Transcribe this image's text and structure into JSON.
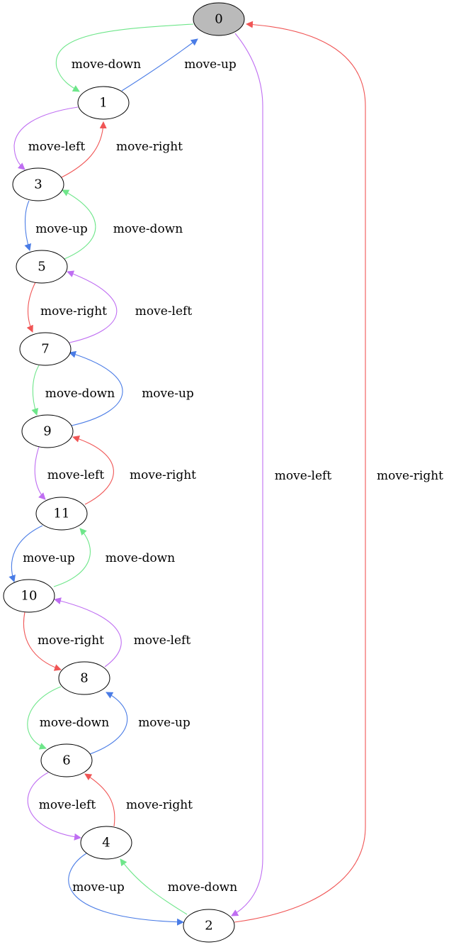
{
  "colors": {
    "move-up": "#4a7ce6",
    "move-down": "#6ee68a",
    "move-left": "#bf6ef2",
    "move-right": "#f05555",
    "initial_fill": "#bababa",
    "node_fill": "#ffffff"
  },
  "nodes": [
    {
      "id": "0",
      "label": "0",
      "initial": true
    },
    {
      "id": "1",
      "label": "1"
    },
    {
      "id": "2",
      "label": "2"
    },
    {
      "id": "3",
      "label": "3"
    },
    {
      "id": "4",
      "label": "4"
    },
    {
      "id": "5",
      "label": "5"
    },
    {
      "id": "6",
      "label": "6"
    },
    {
      "id": "7",
      "label": "7"
    },
    {
      "id": "8",
      "label": "8"
    },
    {
      "id": "9",
      "label": "9"
    },
    {
      "id": "10",
      "label": "10"
    },
    {
      "id": "11",
      "label": "11"
    }
  ],
  "edges": [
    {
      "from": "0",
      "to": "1",
      "label": "move-down"
    },
    {
      "from": "1",
      "to": "0",
      "label": "move-up"
    },
    {
      "from": "0",
      "to": "2",
      "label": "move-left"
    },
    {
      "from": "2",
      "to": "0",
      "label": "move-right"
    },
    {
      "from": "1",
      "to": "3",
      "label": "move-left"
    },
    {
      "from": "3",
      "to": "1",
      "label": "move-right"
    },
    {
      "from": "3",
      "to": "5",
      "label": "move-up"
    },
    {
      "from": "5",
      "to": "3",
      "label": "move-down"
    },
    {
      "from": "5",
      "to": "7",
      "label": "move-right"
    },
    {
      "from": "7",
      "to": "5",
      "label": "move-left"
    },
    {
      "from": "7",
      "to": "9",
      "label": "move-down"
    },
    {
      "from": "9",
      "to": "7",
      "label": "move-up"
    },
    {
      "from": "9",
      "to": "11",
      "label": "move-left"
    },
    {
      "from": "11",
      "to": "9",
      "label": "move-right"
    },
    {
      "from": "11",
      "to": "10",
      "label": "move-up"
    },
    {
      "from": "10",
      "to": "11",
      "label": "move-down"
    },
    {
      "from": "10",
      "to": "8",
      "label": "move-right"
    },
    {
      "from": "8",
      "to": "10",
      "label": "move-left"
    },
    {
      "from": "8",
      "to": "6",
      "label": "move-down"
    },
    {
      "from": "6",
      "to": "8",
      "label": "move-up"
    },
    {
      "from": "6",
      "to": "4",
      "label": "move-left"
    },
    {
      "from": "4",
      "to": "6",
      "label": "move-right"
    },
    {
      "from": "4",
      "to": "2",
      "label": "move-up"
    },
    {
      "from": "2",
      "to": "4",
      "label": "move-down"
    }
  ]
}
